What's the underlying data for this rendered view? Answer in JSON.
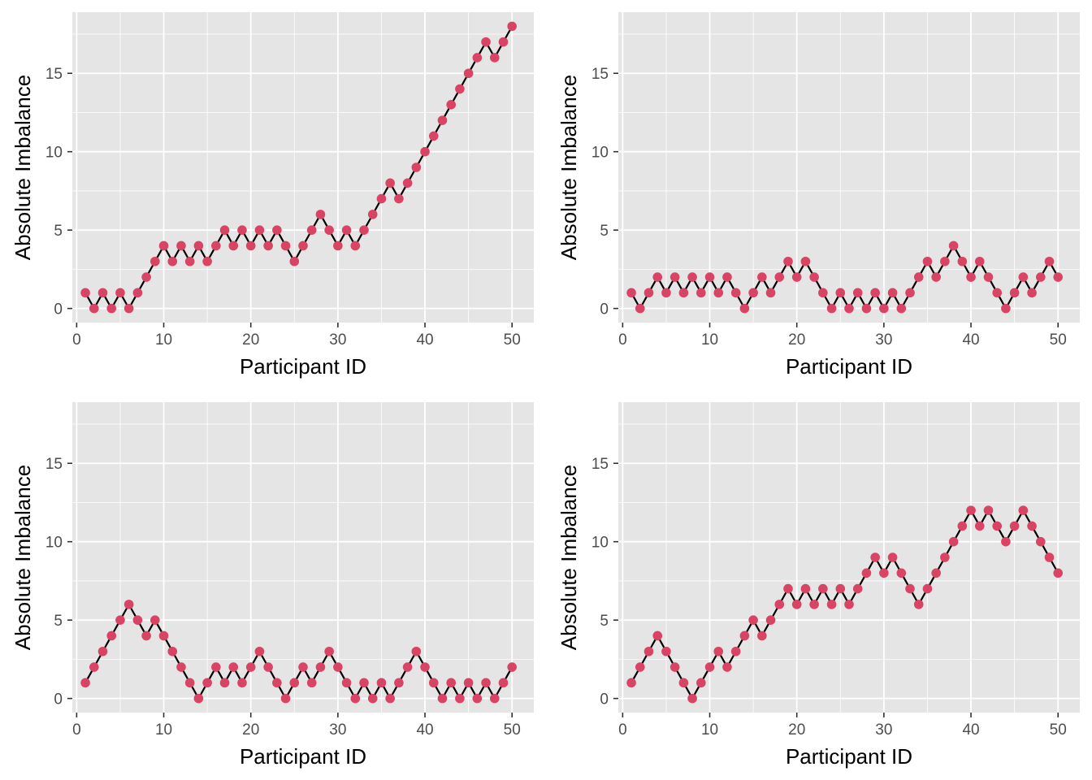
{
  "figure": {
    "style": {
      "panel_background": "#e5e5e5",
      "grid_color": "#ffffff",
      "point_color": "#d94364",
      "line_color": "#000000",
      "tick_text_color": "#4d4d4d"
    }
  },
  "chart_data": [
    {
      "type": "line",
      "xlabel": "Participant ID",
      "ylabel": "Absolute Imbalance",
      "xlim": [
        -0.5,
        52.5
      ],
      "ylim": [
        -0.9,
        18.9
      ],
      "x_ticks": [
        0,
        10,
        20,
        30,
        40,
        50
      ],
      "y_ticks": [
        0,
        5,
        10,
        15
      ],
      "x_tick_labels": [
        "0",
        "10",
        "20",
        "30",
        "40",
        "50"
      ],
      "y_tick_labels": [
        "0",
        "5",
        "10",
        "15"
      ],
      "grid": true,
      "x": [
        1,
        2,
        3,
        4,
        5,
        6,
        7,
        8,
        9,
        10,
        11,
        12,
        13,
        14,
        15,
        16,
        17,
        18,
        19,
        20,
        21,
        22,
        23,
        24,
        25,
        26,
        27,
        28,
        29,
        30,
        31,
        32,
        33,
        34,
        35,
        36,
        37,
        38,
        39,
        40,
        41,
        42,
        43,
        44,
        45,
        46,
        47,
        48,
        49,
        50
      ],
      "values": [
        1,
        0,
        1,
        0,
        1,
        0,
        1,
        2,
        3,
        4,
        3,
        4,
        3,
        4,
        3,
        4,
        5,
        4,
        5,
        4,
        5,
        4,
        5,
        4,
        3,
        4,
        5,
        6,
        5,
        4,
        5,
        4,
        5,
        6,
        7,
        8,
        7,
        8,
        9,
        10,
        11,
        12,
        13,
        14,
        15,
        16,
        17,
        16,
        17,
        18
      ]
    },
    {
      "type": "line",
      "xlabel": "Participant ID",
      "ylabel": "Absolute Imbalance",
      "xlim": [
        -0.5,
        52.5
      ],
      "ylim": [
        -0.9,
        18.9
      ],
      "x_ticks": [
        0,
        10,
        20,
        30,
        40,
        50
      ],
      "y_ticks": [
        0,
        5,
        10,
        15
      ],
      "x_tick_labels": [
        "0",
        "10",
        "20",
        "30",
        "40",
        "50"
      ],
      "y_tick_labels": [
        "0",
        "5",
        "10",
        "15"
      ],
      "grid": true,
      "x": [
        1,
        2,
        3,
        4,
        5,
        6,
        7,
        8,
        9,
        10,
        11,
        12,
        13,
        14,
        15,
        16,
        17,
        18,
        19,
        20,
        21,
        22,
        23,
        24,
        25,
        26,
        27,
        28,
        29,
        30,
        31,
        32,
        33,
        34,
        35,
        36,
        37,
        38,
        39,
        40,
        41,
        42,
        43,
        44,
        45,
        46,
        47,
        48,
        49,
        50
      ],
      "values": [
        1,
        0,
        1,
        2,
        1,
        2,
        1,
        2,
        1,
        2,
        1,
        2,
        1,
        0,
        1,
        2,
        1,
        2,
        3,
        2,
        3,
        2,
        1,
        0,
        1,
        0,
        1,
        0,
        1,
        0,
        1,
        0,
        1,
        2,
        3,
        2,
        3,
        4,
        3,
        2,
        3,
        2,
        1,
        0,
        1,
        2,
        1,
        2,
        3,
        2
      ]
    },
    {
      "type": "line",
      "xlabel": "Participant ID",
      "ylabel": "Absolute Imbalance",
      "xlim": [
        -0.5,
        52.5
      ],
      "ylim": [
        -0.9,
        18.9
      ],
      "x_ticks": [
        0,
        10,
        20,
        30,
        40,
        50
      ],
      "y_ticks": [
        0,
        5,
        10,
        15
      ],
      "x_tick_labels": [
        "0",
        "10",
        "20",
        "30",
        "40",
        "50"
      ],
      "y_tick_labels": [
        "0",
        "5",
        "10",
        "15"
      ],
      "grid": true,
      "x": [
        1,
        2,
        3,
        4,
        5,
        6,
        7,
        8,
        9,
        10,
        11,
        12,
        13,
        14,
        15,
        16,
        17,
        18,
        19,
        20,
        21,
        22,
        23,
        24,
        25,
        26,
        27,
        28,
        29,
        30,
        31,
        32,
        33,
        34,
        35,
        36,
        37,
        38,
        39,
        40,
        41,
        42,
        43,
        44,
        45,
        46,
        47,
        48,
        49,
        50
      ],
      "values": [
        1,
        2,
        3,
        4,
        5,
        6,
        5,
        4,
        5,
        4,
        3,
        2,
        1,
        0,
        1,
        2,
        1,
        2,
        1,
        2,
        3,
        2,
        1,
        0,
        1,
        2,
        1,
        2,
        3,
        2,
        1,
        0,
        1,
        0,
        1,
        0,
        1,
        2,
        3,
        2,
        1,
        0,
        1,
        0,
        1,
        0,
        1,
        0,
        1,
        2
      ]
    },
    {
      "type": "line",
      "xlabel": "Participant ID",
      "ylabel": "Absolute Imbalance",
      "xlim": [
        -0.5,
        52.5
      ],
      "ylim": [
        -0.9,
        18.9
      ],
      "x_ticks": [
        0,
        10,
        20,
        30,
        40,
        50
      ],
      "y_ticks": [
        0,
        5,
        10,
        15
      ],
      "x_tick_labels": [
        "0",
        "10",
        "20",
        "30",
        "40",
        "50"
      ],
      "y_tick_labels": [
        "0",
        "5",
        "10",
        "15"
      ],
      "grid": true,
      "x": [
        1,
        2,
        3,
        4,
        5,
        6,
        7,
        8,
        9,
        10,
        11,
        12,
        13,
        14,
        15,
        16,
        17,
        18,
        19,
        20,
        21,
        22,
        23,
        24,
        25,
        26,
        27,
        28,
        29,
        30,
        31,
        32,
        33,
        34,
        35,
        36,
        37,
        38,
        39,
        40,
        41,
        42,
        43,
        44,
        45,
        46,
        47,
        48,
        49,
        50
      ],
      "values": [
        1,
        2,
        3,
        4,
        3,
        2,
        1,
        0,
        1,
        2,
        3,
        2,
        3,
        4,
        5,
        4,
        5,
        6,
        7,
        6,
        7,
        6,
        7,
        6,
        7,
        6,
        7,
        8,
        9,
        8,
        9,
        8,
        7,
        6,
        7,
        8,
        9,
        10,
        11,
        12,
        11,
        12,
        11,
        10,
        11,
        12,
        11,
        10,
        9,
        8
      ]
    }
  ]
}
